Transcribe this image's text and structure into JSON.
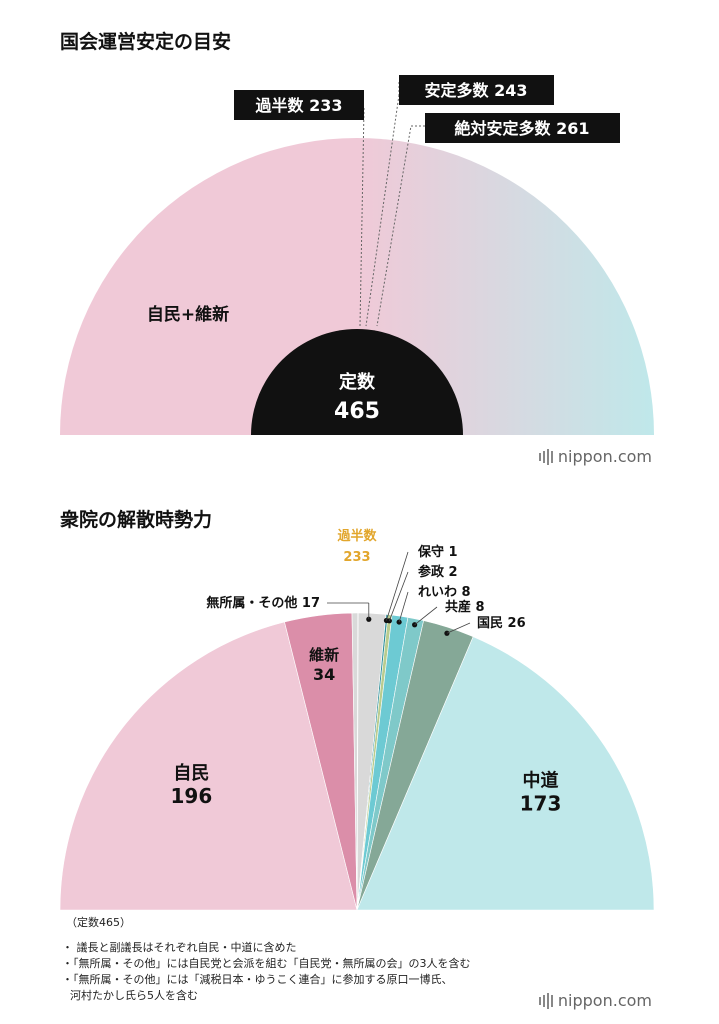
{
  "top_chart": {
    "title": "国会運営安定の目安",
    "section_label": "自民+維新",
    "center_label": "定数",
    "center_value": "465",
    "callouts": [
      {
        "label": "過半数",
        "value": "233"
      },
      {
        "label": "安定多数",
        "value": "243"
      },
      {
        "label": "絶対安定多数",
        "value": "261"
      }
    ],
    "colors": {
      "pink": "#f0c9d7",
      "teal": "#bfe8ea",
      "black": "#111111"
    }
  },
  "bottom_chart": {
    "title": "衆院の解散時勢力",
    "majority_label": "過半数",
    "majority_value": "233",
    "majority_color": "#e2a62c",
    "total_note": "（定数465）",
    "notes": [
      "・ 議長と副議長はそれぞれ自民・中道に含めた",
      "・「無所属・その他」には自民党と会派を組む「自民党・無所属の会」の3人を含む",
      "・「無所属・その他」には「減税日本・ゆうこく連合」に参加する原口一博氏、",
      "河村たかし氏ら5人を含む"
    ]
  },
  "chart_data": {
    "type": "pie",
    "subtype": "half-donut parliament chart",
    "total": 465,
    "categories": [
      "自民",
      "維新",
      "無所属・その他",
      "保守",
      "参政",
      "れいわ",
      "共産",
      "国民",
      "中道"
    ],
    "values": [
      196,
      34,
      17,
      1,
      2,
      8,
      8,
      26,
      173
    ],
    "display_labels": [
      "自民",
      "維新",
      "無所属・その他 17",
      "保守 1",
      "参政 2",
      "れいわ 8",
      "共産 8",
      "国民 26",
      "中道"
    ],
    "inner_values": [
      "196",
      "34",
      "",
      "",
      "",
      "",
      "",
      "",
      "173"
    ],
    "colors": [
      "#f0c9d7",
      "#db8ea9",
      "#d9d9d9",
      "#2f8f9a",
      "#b9cc8e",
      "#6dcad3",
      "#7fc9c9",
      "#85a897",
      "#bfe8ea"
    ],
    "threshold": 233
  },
  "branding": {
    "logo_text": "nippon.com"
  }
}
